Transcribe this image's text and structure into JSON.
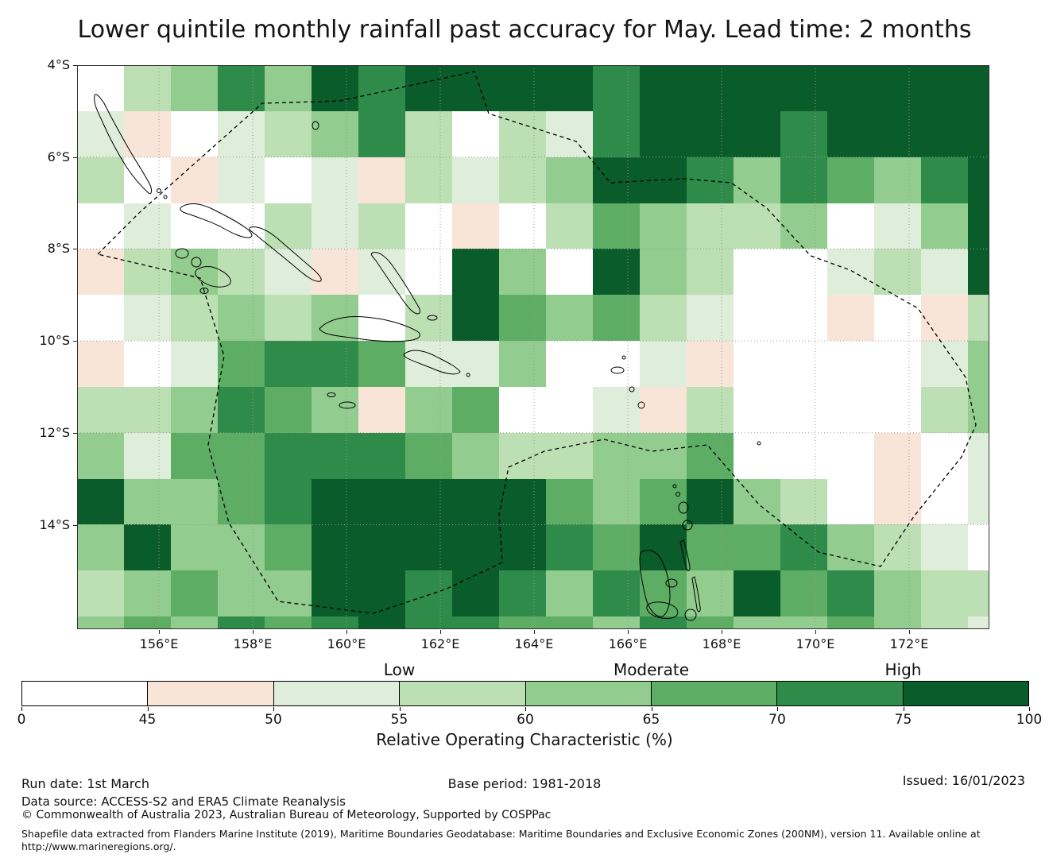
{
  "title": "Lower quintile monthly rainfall past accuracy for May. Lead time: 2 months",
  "map": {
    "lat_ticks": [
      "4°S",
      "6°S",
      "8°S",
      "10°S",
      "12°S",
      "14°S"
    ],
    "lon_ticks": [
      "156°E",
      "158°E",
      "160°E",
      "162°E",
      "164°E",
      "166°E",
      "168°E",
      "170°E",
      "172°E"
    ]
  },
  "colorbar": {
    "qualitative_labels": [
      "Low",
      "Moderate",
      "High"
    ],
    "tick_labels": [
      "0",
      "45",
      "50",
      "55",
      "60",
      "65",
      "70",
      "75",
      "100"
    ],
    "axis_label": "Relative Operating Characteristic (%)"
  },
  "chart_data": {
    "type": "heatmap",
    "title": "Lower quintile monthly rainfall past accuracy for May. Lead time: 2 months",
    "value_name": "Relative Operating Characteristic (%)",
    "x_axis": {
      "tick_labels": [
        "156°E",
        "158°E",
        "160°E",
        "162°E",
        "164°E",
        "166°E",
        "168°E",
        "170°E",
        "172°E"
      ],
      "range_deg_east": [
        154.25,
        173.7
      ]
    },
    "y_axis": {
      "tick_labels": [
        "4°S",
        "6°S",
        "8°S",
        "10°S",
        "12°S",
        "14°S"
      ],
      "range_deg_south": [
        4,
        16.3
      ]
    },
    "legend": {
      "categories": [
        "Low",
        "Moderate",
        "High"
      ],
      "position": "bottom"
    },
    "bin_edges": [
      0,
      45,
      50,
      55,
      60,
      65,
      70,
      75,
      100
    ],
    "bin_colors": [
      "#ffffff",
      "#f9e4d8",
      "#dfeeda",
      "#bcdfb4",
      "#92cc8e",
      "#5dad64",
      "#2e8b49",
      "#0a5c2b"
    ],
    "grid_note": "bin index per 1-degree cell, rows north(4S) to south(16.3S), cols west(154.25E) to east(173.7E)",
    "grid_bin_index": [
      [
        0,
        3,
        4,
        6,
        4,
        7,
        6,
        7,
        7,
        7,
        7,
        6,
        7,
        7,
        7,
        7,
        7,
        7,
        7,
        7
      ],
      [
        2,
        1,
        0,
        2,
        3,
        4,
        6,
        3,
        0,
        3,
        2,
        6,
        7,
        7,
        7,
        6,
        7,
        7,
        7,
        7
      ],
      [
        3,
        0,
        1,
        2,
        0,
        2,
        1,
        3,
        2,
        3,
        4,
        7,
        7,
        6,
        4,
        6,
        5,
        4,
        6,
        7
      ],
      [
        0,
        2,
        0,
        0,
        3,
        2,
        3,
        0,
        1,
        0,
        3,
        5,
        4,
        3,
        3,
        4,
        0,
        2,
        4,
        7
      ],
      [
        1,
        3,
        4,
        3,
        2,
        1,
        2,
        0,
        7,
        4,
        0,
        7,
        4,
        3,
        0,
        0,
        2,
        3,
        2,
        7
      ],
      [
        0,
        2,
        3,
        4,
        3,
        4,
        0,
        3,
        7,
        5,
        4,
        5,
        3,
        2,
        0,
        0,
        1,
        0,
        1,
        3
      ],
      [
        1,
        0,
        2,
        5,
        6,
        6,
        5,
        2,
        2,
        4,
        0,
        0,
        2,
        1,
        0,
        0,
        0,
        0,
        2,
        4
      ],
      [
        3,
        3,
        4,
        6,
        5,
        4,
        1,
        4,
        5,
        0,
        0,
        2,
        1,
        3,
        0,
        0,
        0,
        0,
        3,
        4
      ],
      [
        4,
        2,
        5,
        5,
        6,
        6,
        6,
        5,
        4,
        3,
        3,
        4,
        4,
        5,
        0,
        0,
        0,
        1,
        0,
        2
      ],
      [
        7,
        4,
        4,
        5,
        6,
        7,
        7,
        7,
        7,
        7,
        5,
        4,
        5,
        7,
        4,
        3,
        0,
        1,
        0,
        2
      ],
      [
        4,
        7,
        4,
        4,
        5,
        7,
        7,
        7,
        7,
        7,
        6,
        5,
        7,
        5,
        5,
        6,
        4,
        3,
        2,
        0
      ],
      [
        3,
        4,
        5,
        4,
        4,
        7,
        7,
        6,
        7,
        6,
        4,
        6,
        5,
        4,
        7,
        5,
        6,
        4,
        3,
        3
      ],
      [
        4,
        5,
        4,
        6,
        5,
        6,
        7,
        6,
        6,
        5,
        5,
        4,
        6,
        5,
        4,
        4,
        5,
        4,
        3,
        2
      ]
    ]
  },
  "footer": {
    "run_date": "Run date: 1st March",
    "base_period": "Base period: 1981-2018",
    "issued": "Issued: 16/01/2023",
    "data_source": "Data source: ACCESS-S2 and ERA5 Climate Reanalysis",
    "copyright": "© Commonwealth of Australia 2023, Australian Bureau of Meteorology, Supported by COSPPac",
    "shapefile_line1": "Shapefile data extracted from Flanders Marine Institute (2019), Maritime Boundaries Geodatabase: Maritime Boundaries and Exclusive Economic Zones (200NM), version 11. Available online at",
    "shapefile_line2": "http://www.marineregions.org/."
  }
}
